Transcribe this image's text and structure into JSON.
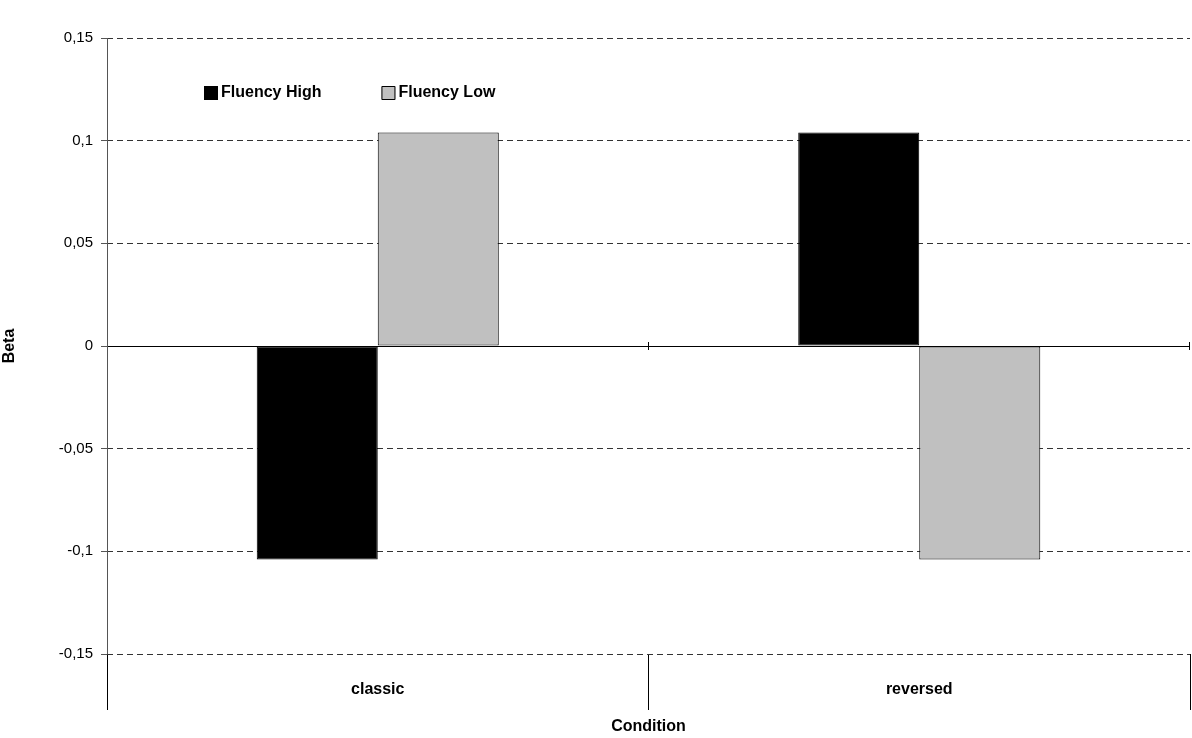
{
  "chart_data": {
    "type": "bar",
    "xlabel": "Condition",
    "ylabel": "Beta",
    "categories": [
      "classic",
      "reversed"
    ],
    "series": [
      {
        "name": "Fluency High",
        "color": "#000000",
        "values": [
          -0.104,
          0.104
        ]
      },
      {
        "name": "Fluency Low",
        "color": "#c0c0c0",
        "values": [
          0.104,
          -0.104
        ]
      }
    ],
    "ylim": [
      -0.15,
      0.15
    ],
    "yticks": [
      {
        "value": -0.15,
        "label": "-0,15"
      },
      {
        "value": -0.1,
        "label": "-0,1"
      },
      {
        "value": -0.05,
        "label": "-0,05"
      },
      {
        "value": 0,
        "label": "0"
      },
      {
        "value": 0.05,
        "label": "0,05"
      },
      {
        "value": 0.1,
        "label": "0,1"
      },
      {
        "value": 0.15,
        "label": "0,15"
      }
    ],
    "grid": "y",
    "legend": "top left"
  }
}
